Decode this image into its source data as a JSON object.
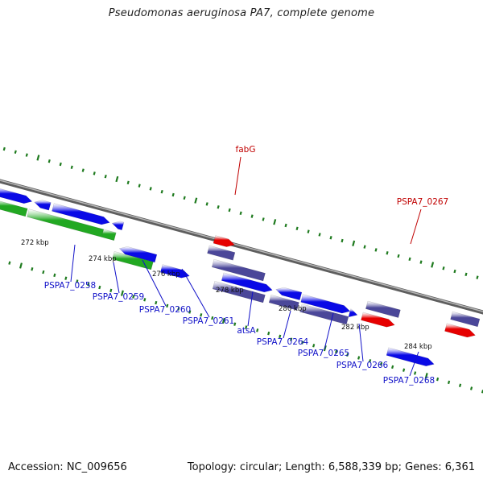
{
  "title": "Pseudomonas aeruginosa PA7, complete genome",
  "footer": {
    "accession": "Accession: NC_009656",
    "summary": "Topology: circular; Length: 6,588,339 bp; Genes: 6,361"
  },
  "colors": {
    "backbone": "#8c8c8c",
    "gene_blue": "#0a0ae6",
    "gene_green": "#22a822",
    "gene_slate": "#4b4799",
    "gene_red": "#e60000",
    "label_blue": "#1010c8",
    "label_red": "#c00000",
    "gc_dots": "#1e7a1e"
  },
  "tick_labels": [
    "272 kbp",
    "274 kbp",
    "276 kbp",
    "278 kbp",
    "280 kbp",
    "282 kbp",
    "284 kbp"
  ],
  "gene_labels": [
    {
      "text": "fabG",
      "color": "red"
    },
    {
      "text": "PSPA7_0267",
      "color": "red"
    },
    {
      "text": "PSPA7_0258",
      "color": "blue"
    },
    {
      "text": "PSPA7_0259",
      "color": "blue"
    },
    {
      "text": "PSPA7_0260",
      "color": "blue"
    },
    {
      "text": "PSPA7_0261",
      "color": "blue"
    },
    {
      "text": "atsA",
      "color": "blue"
    },
    {
      "text": "PSPA7_0264",
      "color": "blue"
    },
    {
      "text": "PSPA7_0265",
      "color": "blue"
    },
    {
      "text": "PSPA7_0266",
      "color": "blue"
    },
    {
      "text": "PSPA7_0268",
      "color": "blue"
    }
  ]
}
